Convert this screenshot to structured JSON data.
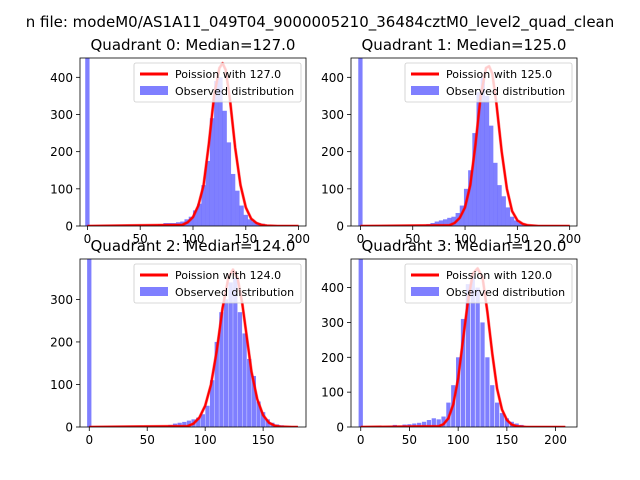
{
  "suptitle": "n file: modeM0/AS1A11_049T04_9000005210_36484cztM0_level2_quad_clean",
  "colors": {
    "hist_fill": "#0000ff",
    "hist_alpha": 0.5,
    "poisson_line": "#ff0000",
    "axes": "#000000",
    "legend_border": "#cccccc"
  },
  "chart_data": [
    {
      "type": "bar",
      "title": "Quadrant 0: Median=127.0",
      "median": 127.0,
      "xlim": [
        -7,
        207
      ],
      "ylim": [
        0,
        452
      ],
      "xticks": [
        0,
        50,
        100,
        150,
        200
      ],
      "yticks": [
        0,
        100,
        200,
        300,
        400
      ],
      "legend": [
        "Poission with 127.0",
        "Observed distribution"
      ],
      "poisson_label": "Poission with 127.0",
      "hist_label": "Observed distribution",
      "legend_position": "upper right",
      "bin_width": 4.1,
      "hist": {
        "x": [
          0,
          69,
          74,
          78,
          82,
          86,
          90,
          94,
          98,
          102,
          106,
          110,
          114,
          118,
          122,
          126,
          130,
          134,
          138,
          142,
          146,
          150,
          154,
          158,
          162,
          166,
          170
        ],
        "y": [
          452,
          5,
          8,
          8,
          8,
          10,
          12,
          18,
          25,
          42,
          60,
          110,
          175,
          290,
          390,
          400,
          310,
          225,
          140,
          95,
          55,
          30,
          18,
          12,
          8,
          6,
          3
        ]
      },
      "poisson": {
        "x": [
          0,
          90,
          95,
          100,
          105,
          110,
          115,
          120,
          125,
          128,
          131,
          135,
          140,
          145,
          150,
          155,
          160,
          165,
          170,
          180,
          200
        ],
        "y": [
          0,
          3,
          10,
          24,
          55,
          110,
          220,
          350,
          425,
          438,
          420,
          340,
          210,
          110,
          50,
          20,
          8,
          3,
          1,
          0,
          0
        ]
      }
    },
    {
      "type": "bar",
      "title": "Quadrant 1: Median=125.0",
      "median": 125.0,
      "xlim": [
        -9,
        207
      ],
      "ylim": [
        0,
        452
      ],
      "xticks": [
        0,
        50,
        100,
        150,
        200
      ],
      "yticks": [
        0,
        100,
        200,
        300,
        400
      ],
      "legend": [
        "Poission with 125.0",
        "Observed distribution"
      ],
      "poisson_label": "Poission with 125.0",
      "hist_label": "Observed distribution",
      "legend_position": "upper right",
      "bin_width": 4.1,
      "hist": {
        "x": [
          0,
          60,
          65,
          69,
          73,
          77,
          81,
          85,
          89,
          93,
          97,
          101,
          105,
          109,
          113,
          117,
          121,
          125,
          129,
          133,
          137,
          141,
          145,
          149,
          153,
          157,
          161,
          165,
          169
        ],
        "y": [
          452,
          3,
          5,
          8,
          12,
          15,
          18,
          22,
          25,
          35,
          55,
          100,
          150,
          250,
          360,
          400,
          350,
          270,
          170,
          110,
          80,
          50,
          25,
          15,
          8,
          5,
          3,
          2,
          1
        ]
      },
      "poisson": {
        "x": [
          0,
          85,
          90,
          95,
          100,
          105,
          110,
          115,
          120,
          123,
          126,
          130,
          135,
          140,
          145,
          150,
          155,
          160,
          170,
          190,
          200
        ],
        "y": [
          0,
          2,
          8,
          22,
          50,
          110,
          220,
          350,
          425,
          430,
          410,
          330,
          200,
          100,
          40,
          15,
          6,
          2,
          0,
          0,
          0
        ]
      }
    },
    {
      "type": "bar",
      "title": "Quadrant 2: Median=124.0",
      "median": 124.0,
      "xlim": [
        -8,
        187
      ],
      "ylim": [
        0,
        395
      ],
      "xticks": [
        0,
        50,
        100,
        150
      ],
      "yticks": [
        0,
        100,
        200,
        300
      ],
      "legend": [
        "Poission with 124.0",
        "Observed distribution"
      ],
      "poisson_label": "Poission with 124.0",
      "hist_label": "Observed distribution",
      "legend_position": "upper right",
      "bin_width": 3.7,
      "hist": {
        "x": [
          0,
          70,
          74,
          78,
          82,
          86,
          90,
          94,
          98,
          102,
          106,
          110,
          114,
          118,
          122,
          126,
          130,
          134,
          138,
          142,
          146,
          150,
          154,
          158,
          162,
          166,
          170,
          174
        ],
        "y": [
          395,
          5,
          8,
          10,
          12,
          15,
          18,
          22,
          30,
          50,
          110,
          200,
          270,
          300,
          340,
          350,
          270,
          220,
          160,
          120,
          60,
          35,
          18,
          10,
          6,
          4,
          2,
          1
        ]
      },
      "poisson": {
        "x": [
          0,
          85,
          90,
          95,
          100,
          105,
          110,
          115,
          120,
          124,
          128,
          132,
          136,
          140,
          145,
          150,
          155,
          160,
          165,
          175,
          180
        ],
        "y": [
          0,
          2,
          8,
          22,
          50,
          100,
          180,
          280,
          350,
          370,
          350,
          290,
          210,
          130,
          65,
          28,
          10,
          3,
          1,
          0,
          0
        ]
      }
    },
    {
      "type": "bar",
      "title": "Quadrant 3: Median=120.0",
      "median": 120.0,
      "xlim": [
        -10,
        222
      ],
      "ylim": [
        0,
        482
      ],
      "xticks": [
        0,
        50,
        100,
        150,
        200
      ],
      "yticks": [
        0,
        100,
        200,
        300,
        400
      ],
      "legend": [
        "Poission with 120.0",
        "Observed distribution"
      ],
      "poisson_label": "Poission with 120.0",
      "hist_label": "Observed distribution",
      "legend_position": "upper right",
      "bin_width": 4.4,
      "hist": {
        "x": [
          0,
          30,
          35,
          40,
          45,
          50,
          55,
          60,
          65,
          70,
          75,
          80,
          85,
          90,
          95,
          100,
          105,
          110,
          115,
          120,
          125,
          130,
          135,
          140,
          145,
          150,
          155,
          160,
          165,
          170
        ],
        "y": [
          482,
          3,
          6,
          4,
          7,
          8,
          10,
          12,
          15,
          20,
          25,
          22,
          30,
          70,
          120,
          200,
          310,
          410,
          430,
          400,
          300,
          200,
          120,
          70,
          40,
          25,
          15,
          10,
          6,
          3
        ]
      },
      "poisson": {
        "x": [
          0,
          80,
          85,
          90,
          95,
          100,
          105,
          110,
          115,
          120,
          125,
          130,
          135,
          140,
          145,
          150,
          155,
          160,
          170,
          190,
          210
        ],
        "y": [
          0,
          2,
          8,
          25,
          65,
          140,
          250,
          360,
          440,
          455,
          430,
          330,
          210,
          110,
          50,
          20,
          7,
          2,
          0,
          0,
          0
        ]
      }
    }
  ]
}
